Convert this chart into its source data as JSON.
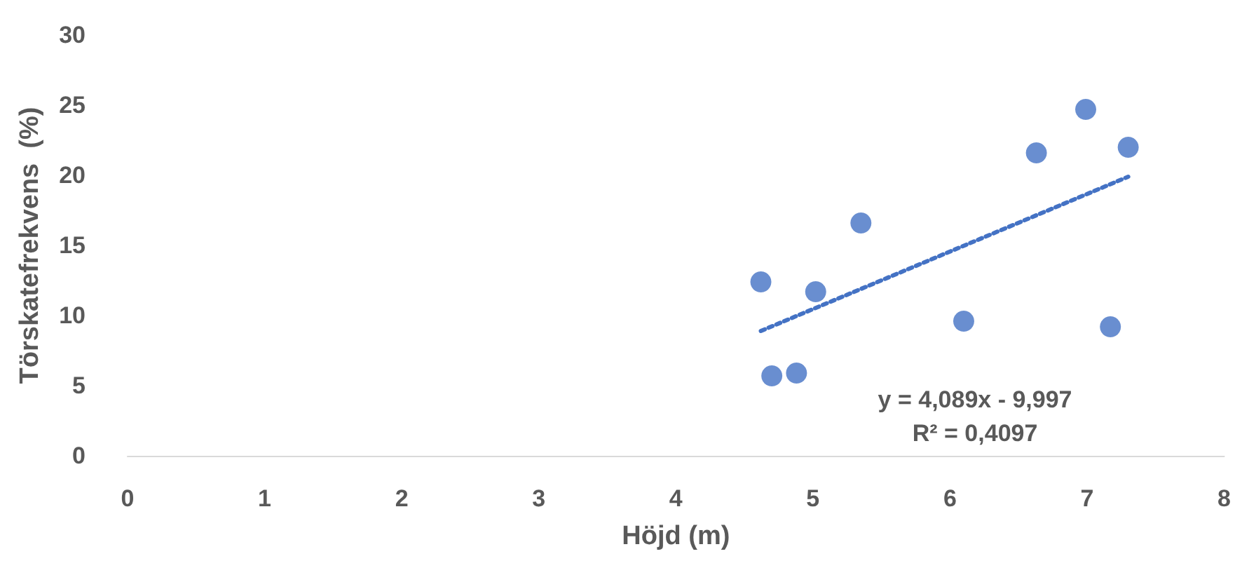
{
  "chart_data": {
    "type": "scatter",
    "xlabel": "Höjd (m)",
    "ylabel": "Törskatefrekvens  (%)",
    "annotations": [
      "y = 4,089x - 9,997",
      "R² = 0,4097"
    ],
    "series": [
      {
        "color": "#4472c4",
        "marker": "circle",
        "x": [
          4.62,
          4.7,
          4.88,
          5.02,
          5.35,
          6.1,
          6.63,
          6.99,
          7.17,
          7.3
        ],
        "values": [
          12.4,
          5.7,
          5.9,
          11.7,
          16.6,
          9.6,
          21.6,
          24.7,
          9.2,
          22.0
        ]
      },
      {
        "type": "line",
        "color": "#4472c4",
        "marker": "none",
        "line_style": "dotted",
        "x": [
          4.62,
          7.3
        ],
        "values": [
          8.9,
          19.9
        ]
      }
    ],
    "xlim": [
      0,
      8
    ],
    "xticks": [
      0,
      1,
      2,
      3,
      4,
      5,
      6,
      7,
      8
    ],
    "ylim": [
      0,
      30
    ],
    "yticks": [
      0,
      5,
      10,
      15,
      20,
      25,
      30
    ],
    "grid": false
  }
}
